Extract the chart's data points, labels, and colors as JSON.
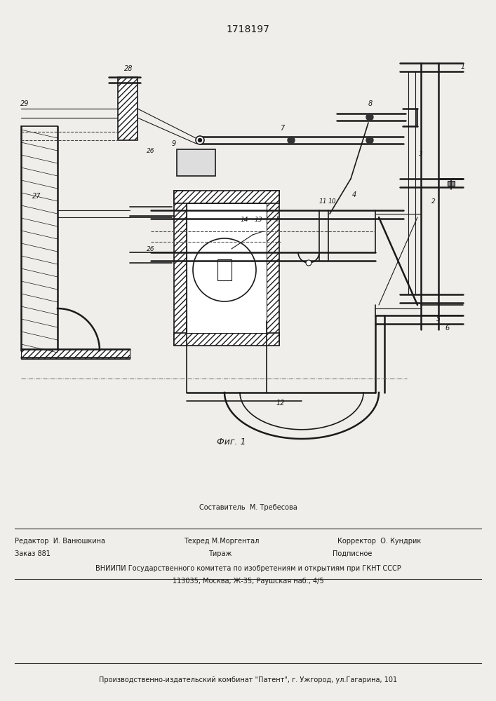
{
  "title": "1718197",
  "fig_label": "Фиг. 1",
  "bg_color": "#f0eeea",
  "lc": "#1a1a1a",
  "footer": {
    "line1_top": "Составитель  М. Требесова",
    "line1_left": "Редактор  И. Ванюшкина",
    "line1_center": "Техред М.Моргентал",
    "line1_right": "Корректор  О. Кундрик",
    "line2_left": "Заказ 881",
    "line2_center": "Тираж",
    "line2_right": "Подписное",
    "line3": "ВНИИПИ Государственного комитета по изобретениям и открытиям при ГКНТ СССР",
    "line4": "113035, Москва, Ж-35, Раушская наб., 4/5",
    "line5": "Производственно-издательский комбинат \"Патент\", г. Ужгород, ул.Гагарина, 101"
  }
}
